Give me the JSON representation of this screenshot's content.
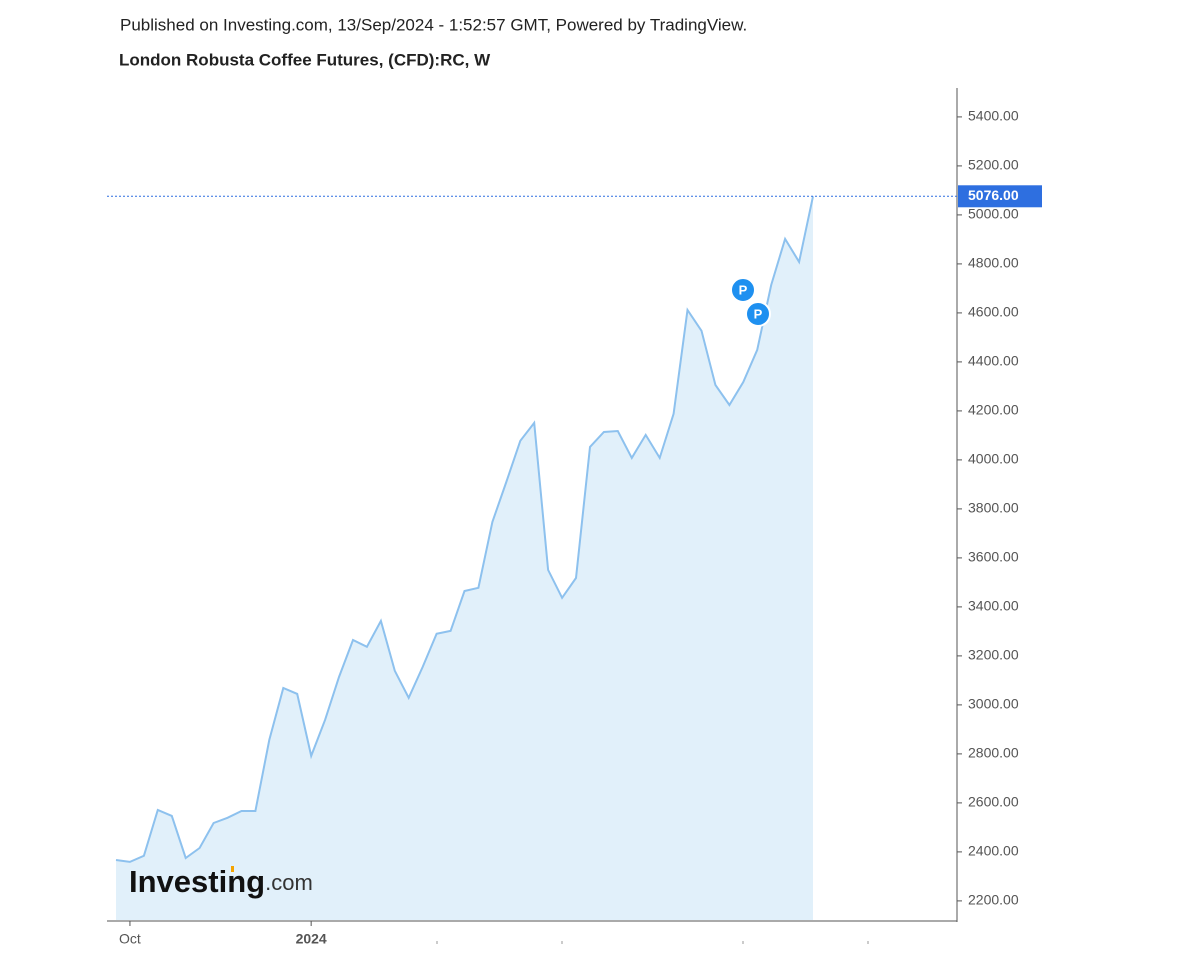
{
  "header": {
    "published": "Published on Investing.com, 13/Sep/2024 - 1:52:57 GMT, Powered by TradingView.",
    "title": "London Robusta Coffee Futures, (CFD):RC, W"
  },
  "chart_data": {
    "type": "area",
    "categories": [
      null,
      "Oct",
      null,
      null,
      null,
      null,
      null,
      null,
      null,
      null,
      null,
      null,
      null,
      null,
      "2024",
      null,
      null,
      null,
      null,
      null,
      null,
      null,
      null,
      null,
      null,
      null,
      null,
      null,
      null,
      null,
      null,
      null,
      null,
      null,
      null,
      null,
      null,
      null,
      null,
      null,
      null,
      null,
      null,
      null,
      null,
      null,
      null,
      null,
      null,
      null,
      null
    ],
    "values": [
      2367,
      2359,
      2384,
      2571,
      2547,
      2375,
      2416,
      2518,
      2539,
      2567,
      2567,
      2857,
      3069,
      3045,
      2792,
      2939,
      3114,
      3265,
      3237,
      3343,
      3139,
      3029,
      3155,
      3290,
      3302,
      3465,
      3478,
      3747,
      3910,
      4078,
      4151,
      3551,
      3437,
      3518,
      4053,
      4114,
      4118,
      4008,
      4102,
      4008,
      4188,
      4612,
      4527,
      4306,
      4224,
      4318,
      4449,
      4714,
      4902,
      4808,
      5076
    ],
    "value_labels": [
      null,
      null,
      null,
      null,
      null,
      null,
      null,
      null,
      null,
      null,
      null,
      null,
      null,
      null,
      null,
      null,
      null,
      null,
      null,
      null,
      null,
      null,
      null,
      null,
      null,
      null,
      null,
      null,
      null,
      null,
      null,
      null,
      null,
      null,
      null,
      null,
      null,
      null,
      null,
      null,
      null,
      null,
      null,
      null,
      null,
      null,
      null,
      null,
      null,
      null,
      "5076.00"
    ],
    "color": "#8dc1ee",
    "fill_color": "#e1f0fa",
    "last_color": "#2e6fe0",
    "ylim": [
      2122,
      5518
    ],
    "yticks": [
      {
        "value": 2200,
        "label": "2200.00"
      },
      {
        "value": 2400,
        "label": "2400.00"
      },
      {
        "value": 2600,
        "label": "2600.00"
      },
      {
        "value": 2800,
        "label": "2800.00"
      },
      {
        "value": 3000,
        "label": "3000.00"
      },
      {
        "value": 3200,
        "label": "3200.00"
      },
      {
        "value": 3400,
        "label": "3400.00"
      },
      {
        "value": 3600,
        "label": "3600.00"
      },
      {
        "value": 3800,
        "label": "3800.00"
      },
      {
        "value": 4000,
        "label": "4000.00"
      },
      {
        "value": 4200,
        "label": "4200.00"
      },
      {
        "value": 4400,
        "label": "4400.00"
      },
      {
        "value": 4600,
        "label": "4600.00"
      },
      {
        "value": 4800,
        "label": "4800.00"
      },
      {
        "value": 5000,
        "label": "5000.00"
      },
      {
        "value": 5200,
        "label": "5200.00"
      },
      {
        "value": 5400,
        "label": "5400.00"
      }
    ],
    "markers": [
      {
        "label": "P"
      },
      {
        "label": "P"
      }
    ],
    "logo": {
      "main": "Investing",
      "suffix": ".com"
    }
  }
}
